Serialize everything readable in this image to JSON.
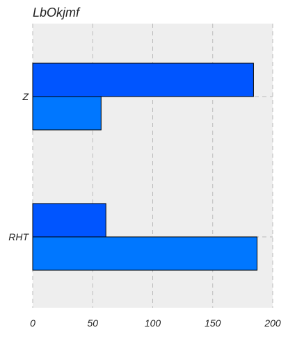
{
  "chart_data": {
    "type": "bar",
    "orientation": "horizontal",
    "title": "LbOkjmf",
    "xlabel": "",
    "ylabel": "",
    "categories": [
      "Z",
      "RHT"
    ],
    "series": [
      {
        "values": [
          184,
          61
        ],
        "color": "#0055ff"
      },
      {
        "values": [
          57,
          187
        ],
        "color": "#0077ff"
      }
    ],
    "xlim": [
      0,
      200
    ],
    "xticks": [
      0,
      50,
      100,
      150,
      200
    ],
    "xtick_labels": [
      "0",
      "50",
      "100",
      "150",
      "200"
    ],
    "grid": true,
    "grid_color": "#bbbbbb",
    "plot_background": "#eeeeee",
    "bar_edge_color": "#000000"
  }
}
